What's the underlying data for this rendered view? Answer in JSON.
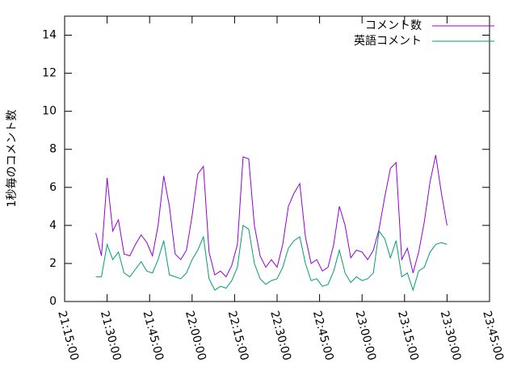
{
  "chart_data": {
    "type": "line",
    "ylabel": "1秒毎のコメント数",
    "x": [
      "21:26:00",
      "21:28:00",
      "21:30:00",
      "21:32:00",
      "21:34:00",
      "21:36:00",
      "21:38:00",
      "21:40:00",
      "21:42:00",
      "21:44:00",
      "21:46:00",
      "21:48:00",
      "21:50:00",
      "21:52:00",
      "21:54:00",
      "21:56:00",
      "21:58:00",
      "22:00:00",
      "22:02:00",
      "22:04:00",
      "22:06:00",
      "22:08:00",
      "22:10:00",
      "22:12:00",
      "22:14:00",
      "22:16:00",
      "22:18:00",
      "22:20:00",
      "22:22:00",
      "22:24:00",
      "22:26:00",
      "22:28:00",
      "22:30:00",
      "22:32:00",
      "22:34:00",
      "22:36:00",
      "22:38:00",
      "22:40:00",
      "22:42:00",
      "22:44:00",
      "22:46:00",
      "22:48:00",
      "22:50:00",
      "22:52:00",
      "22:54:00",
      "22:56:00",
      "22:58:00",
      "23:00:00",
      "23:02:00",
      "23:04:00",
      "23:06:00",
      "23:08:00",
      "23:10:00",
      "23:12:00",
      "23:14:00",
      "23:16:00",
      "23:18:00",
      "23:20:00",
      "23:22:00",
      "23:24:00",
      "23:26:00",
      "23:28:00",
      "23:30:00"
    ],
    "series": [
      {
        "name": "コメント数",
        "color": "#9400d3",
        "values": [
          3.6,
          2.4,
          6.5,
          3.7,
          4.3,
          2.5,
          2.4,
          3.0,
          3.5,
          3.1,
          2.4,
          4.0,
          6.6,
          5.0,
          2.5,
          2.2,
          2.7,
          4.5,
          6.7,
          7.1,
          2.6,
          1.4,
          1.6,
          1.3,
          1.9,
          3.0,
          7.6,
          7.5,
          4.0,
          2.4,
          1.8,
          2.2,
          1.8,
          3.0,
          5.0,
          5.7,
          6.2,
          3.4,
          2.0,
          2.2,
          1.6,
          1.8,
          3.0,
          5.0,
          4.0,
          2.3,
          2.7,
          2.6,
          2.2,
          2.7,
          3.8,
          5.5,
          7.0,
          7.3,
          2.2,
          2.8,
          1.5,
          2.6,
          4.2,
          6.3,
          7.7,
          5.7,
          4.0
        ]
      },
      {
        "name": "英語コメント",
        "color": "#009e73",
        "values": [
          1.3,
          1.3,
          3.0,
          2.2,
          2.6,
          1.5,
          1.3,
          1.7,
          2.1,
          1.6,
          1.5,
          2.2,
          3.2,
          1.4,
          1.3,
          1.2,
          1.5,
          2.2,
          2.7,
          3.4,
          1.2,
          0.6,
          0.8,
          0.7,
          1.1,
          1.8,
          4.0,
          3.8,
          2.0,
          1.2,
          0.9,
          1.1,
          1.2,
          1.8,
          2.8,
          3.2,
          3.4,
          2.0,
          1.1,
          1.2,
          0.8,
          0.9,
          1.6,
          2.7,
          1.5,
          1.0,
          1.3,
          1.1,
          1.2,
          1.5,
          3.7,
          3.3,
          2.3,
          3.2,
          1.3,
          1.5,
          0.6,
          1.6,
          1.8,
          2.6,
          3.0,
          3.1,
          3.0
        ]
      }
    ],
    "xlim": [
      "21:15:00",
      "23:45:00"
    ],
    "xticks": [
      "21:15:00",
      "21:30:00",
      "21:45:00",
      "22:00:00",
      "22:15:00",
      "22:30:00",
      "22:45:00",
      "23:00:00",
      "23:15:00",
      "23:30:00",
      "23:45:00"
    ],
    "ylim": [
      0,
      15
    ],
    "yticks": [
      0,
      2,
      4,
      6,
      8,
      10,
      12,
      14
    ],
    "legend": "top-right"
  }
}
